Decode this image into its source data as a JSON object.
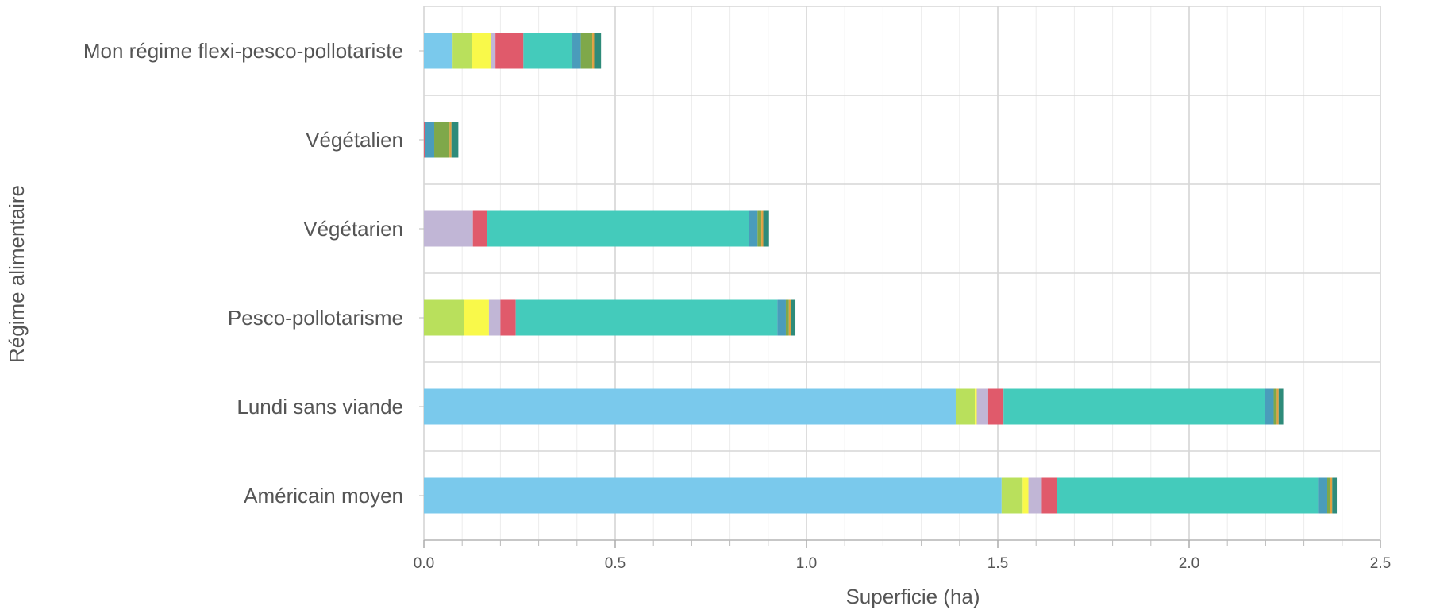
{
  "chart_data": {
    "type": "bar",
    "orientation": "horizontal",
    "stacked": true,
    "xlabel": "Superficie (ha)",
    "ylabel": "Régime alimentaire",
    "xlim": [
      0,
      2.5
    ],
    "xticks": [
      0.0,
      0.5,
      1.0,
      1.5,
      2.0,
      2.5
    ],
    "xtick_labels": [
      "0.0",
      "0.5",
      "1.0",
      "1.5",
      "2.0",
      "2.5"
    ],
    "grid": true,
    "legend": "none",
    "categories": [
      "Mon régime flexi-pesco-pollotariste",
      "Végétalien",
      "Végétarien",
      "Pesco-pollotarisme",
      "Lundi sans viande",
      "Américain moyen"
    ],
    "segment_colors": [
      "#7ac9ec",
      "#b9e05c",
      "#f9f94a",
      "#c1b6d6",
      "#e05a6b",
      "#44cbbb",
      "#4a9cbb",
      "#7fa84a",
      "#e0a040",
      "#2e8b7a"
    ],
    "series": [
      {
        "values": [
          0.075,
          0.0,
          0.0,
          0.0,
          1.39,
          1.51
        ]
      },
      {
        "values": [
          0.05,
          0.0,
          0.0,
          0.105,
          0.05,
          0.055
        ]
      },
      {
        "values": [
          0.05,
          0.0,
          0.0,
          0.065,
          0.005,
          0.015
        ]
      },
      {
        "values": [
          0.012,
          0.0,
          0.128,
          0.03,
          0.03,
          0.035
        ]
      },
      {
        "values": [
          0.073,
          0.002,
          0.038,
          0.04,
          0.04,
          0.04
        ]
      },
      {
        "values": [
          0.128,
          0.0,
          0.684,
          0.684,
          0.684,
          0.684
        ]
      },
      {
        "values": [
          0.022,
          0.025,
          0.022,
          0.022,
          0.022,
          0.022
        ]
      },
      {
        "values": [
          0.03,
          0.04,
          0.01,
          0.008,
          0.008,
          0.008
        ]
      },
      {
        "values": [
          0.005,
          0.005,
          0.005,
          0.005,
          0.005,
          0.005
        ]
      },
      {
        "values": [
          0.018,
          0.018,
          0.015,
          0.012,
          0.012,
          0.012
        ]
      }
    ]
  }
}
